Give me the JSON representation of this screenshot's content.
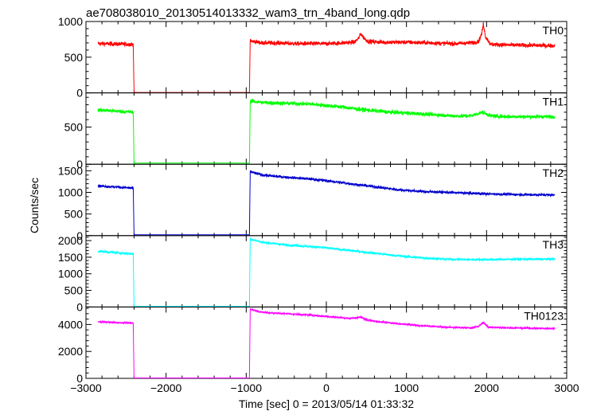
{
  "chart_data": {
    "type": "line",
    "title": "ae708038010_20130514013332_wam3_trn_4band_long.qdp",
    "xlabel": "Time [sec] 0 = 2013/05/14 01:33:32",
    "ylabel": "Counts/sec",
    "xlim": [
      -3000,
      3000
    ],
    "xticks": [
      -3000,
      -2000,
      -1000,
      0,
      1000,
      2000,
      3000
    ],
    "xtick_labels": [
      "−3000",
      "−2000",
      "−1000",
      "0",
      "1000",
      "2000",
      "3000"
    ],
    "grid": false,
    "data_gap": {
      "start": -2400,
      "end": -950
    },
    "panels": [
      {
        "name": "TH0",
        "color": "#ff0000",
        "ylim": [
          0,
          1000
        ],
        "yticks": [
          0,
          500,
          1000
        ],
        "ytick_labels": [
          "0",
          "500",
          "1000"
        ],
        "noise": 28,
        "x": [
          -2850,
          -2410,
          -2400,
          -960,
          -950,
          -800,
          -600,
          -400,
          -200,
          0,
          200,
          350,
          400,
          430,
          460,
          520,
          700,
          1000,
          1300,
          1600,
          1800,
          1900,
          1940,
          1960,
          1985,
          2050,
          2300,
          2600,
          2850
        ],
        "y": [
          690,
          680,
          5,
          5,
          730,
          700,
          700,
          690,
          690,
          690,
          700,
          710,
          760,
          830,
          780,
          720,
          710,
          710,
          700,
          690,
          700,
          720,
          830,
          970,
          790,
          680,
          670,
          665,
          660
        ]
      },
      {
        "name": "TH1",
        "color": "#00ff00",
        "ylim": [
          0,
          960
        ],
        "yticks": [
          0,
          500
        ],
        "ytick_labels": [
          "0",
          "500"
        ],
        "noise": 25,
        "x": [
          -2850,
          -2410,
          -2400,
          -960,
          -950,
          -800,
          -500,
          -200,
          0,
          200,
          400,
          600,
          800,
          1000,
          1300,
          1600,
          1800,
          1950,
          2050,
          2300,
          2600,
          2850
        ],
        "y": [
          730,
          700,
          15,
          15,
          850,
          830,
          820,
          810,
          790,
          770,
          740,
          720,
          700,
          690,
          670,
          650,
          650,
          700,
          650,
          640,
          640,
          640
        ]
      },
      {
        "name": "TH2",
        "color": "#0000cc",
        "ylim": [
          0,
          1650
        ],
        "yticks": [
          0,
          500,
          1000,
          1500
        ],
        "ytick_labels": [
          "0",
          "500",
          "1000",
          "1500"
        ],
        "noise": 30,
        "x": [
          -2850,
          -2410,
          -2400,
          -960,
          -950,
          -800,
          -500,
          -200,
          0,
          300,
          600,
          900,
          1200,
          1500,
          1800,
          2100,
          2400,
          2850
        ],
        "y": [
          1150,
          1100,
          20,
          20,
          1480,
          1400,
          1350,
          1310,
          1270,
          1200,
          1130,
          1060,
          1020,
          1000,
          980,
          960,
          950,
          940
        ]
      },
      {
        "name": "TH3",
        "color": "#00ffff",
        "ylim": [
          0,
          2150
        ],
        "yticks": [
          0,
          500,
          1000,
          1500,
          2000
        ],
        "ytick_labels": [
          "0",
          "500",
          "1000",
          "1500",
          "2000"
        ],
        "noise": 35,
        "x": [
          -2850,
          -2410,
          -2400,
          -960,
          -950,
          -800,
          -500,
          -200,
          0,
          300,
          600,
          900,
          1200,
          1500,
          1800,
          2100,
          2400,
          2850
        ],
        "y": [
          1680,
          1600,
          20,
          20,
          2050,
          1950,
          1870,
          1820,
          1780,
          1700,
          1620,
          1540,
          1480,
          1440,
          1430,
          1430,
          1440,
          1440
        ]
      },
      {
        "name": "TH0123",
        "color": "#ff00ff",
        "ylim": [
          0,
          5300
        ],
        "yticks": [
          0,
          2000,
          4000
        ],
        "ytick_labels": [
          "0",
          "2000",
          "4000"
        ],
        "noise": 60,
        "x": [
          -2850,
          -2410,
          -2400,
          -960,
          -950,
          -800,
          -500,
          -200,
          0,
          300,
          430,
          480,
          600,
          900,
          1200,
          1500,
          1800,
          1900,
          1960,
          2020,
          2300,
          2600,
          2850
        ],
        "y": [
          4200,
          4100,
          30,
          30,
          5150,
          4900,
          4800,
          4700,
          4600,
          4450,
          4550,
          4400,
          4250,
          4050,
          3900,
          3800,
          3750,
          3850,
          4150,
          3800,
          3750,
          3720,
          3700
        ]
      }
    ]
  }
}
